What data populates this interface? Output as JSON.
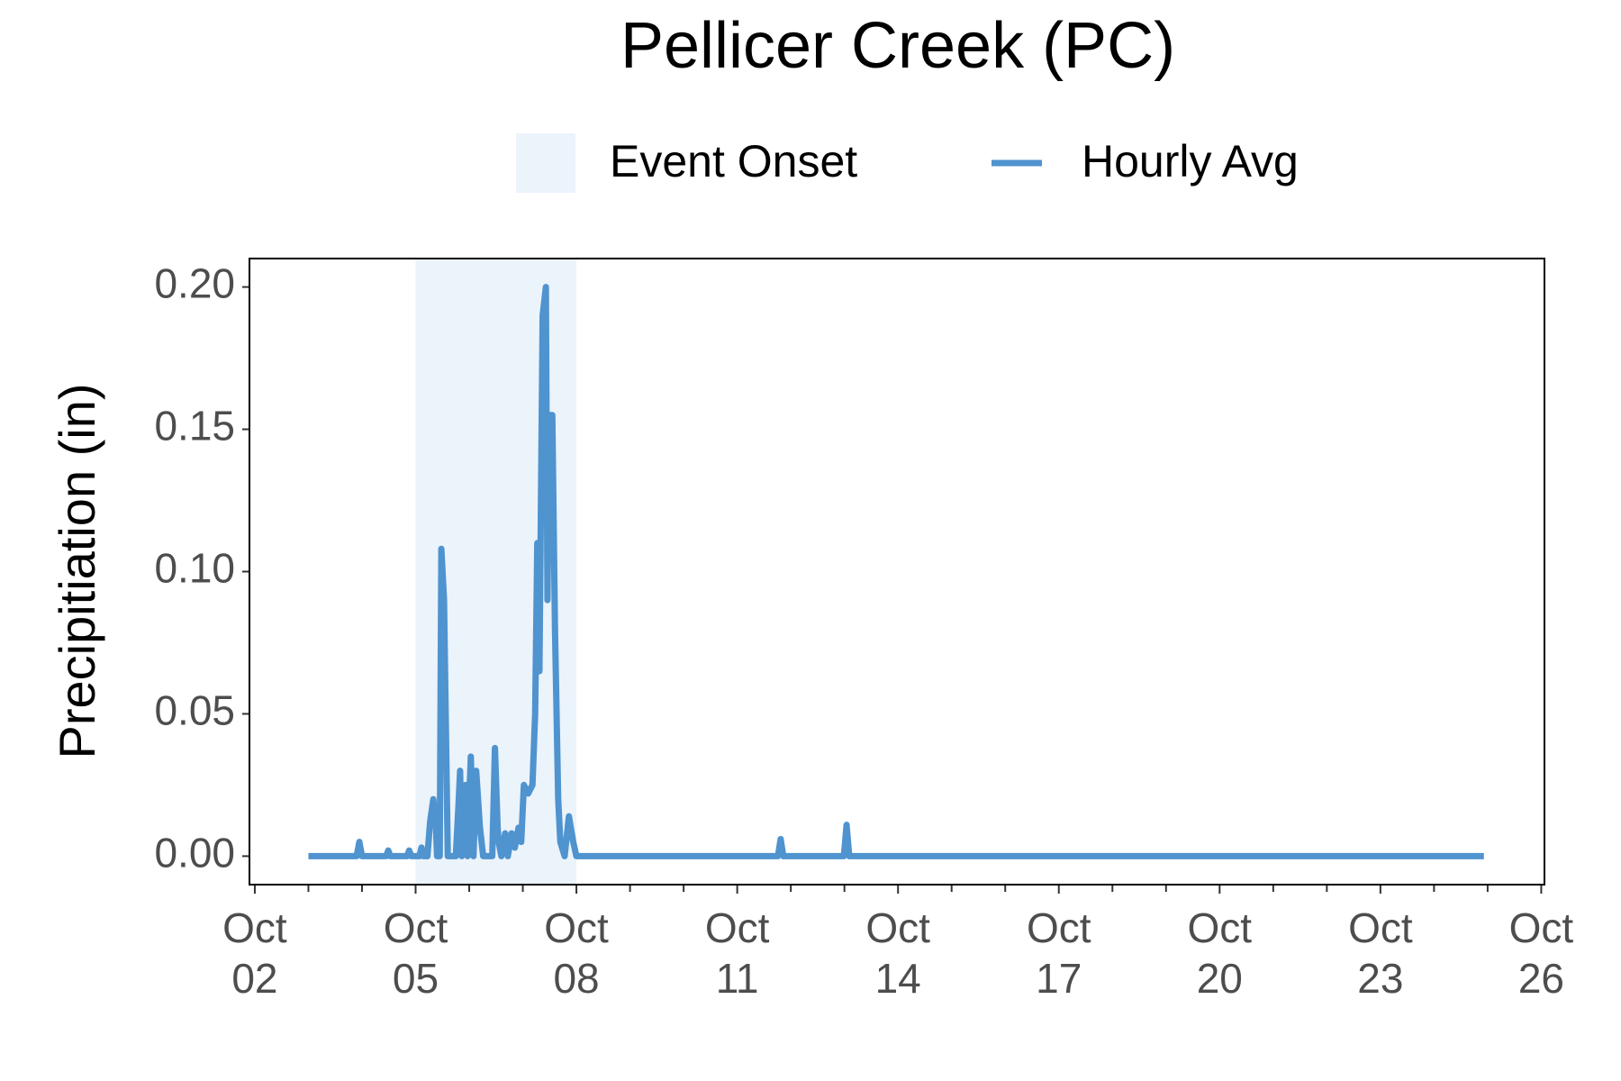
{
  "chart_data": {
    "type": "line",
    "title": "Pellicer Creek (PC)",
    "y_label": "Precipitiation (in)",
    "legend": "top",
    "shaded": {
      "name": "Event Onset",
      "color": "#ebf3fb",
      "x": [
        5,
        8
      ]
    },
    "series": [
      {
        "name": "Hourly Avg",
        "color": "#4f93cf",
        "x": [
          3.0,
          3.9,
          3.95,
          4.0,
          4.45,
          4.49,
          4.53,
          4.84,
          4.88,
          4.92,
          5.07,
          5.11,
          5.15,
          5.22,
          5.27,
          5.33,
          5.38,
          5.4,
          5.45,
          5.48,
          5.53,
          5.6,
          5.75,
          5.8,
          5.83,
          5.86,
          5.9,
          5.93,
          5.97,
          6.0,
          6.03,
          6.08,
          6.13,
          6.2,
          6.26,
          6.43,
          6.48,
          6.53,
          6.55,
          6.6,
          6.67,
          6.72,
          6.79,
          6.85,
          6.92,
          6.97,
          7.02,
          7.1,
          7.18,
          7.23,
          7.27,
          7.31,
          7.37,
          7.43,
          7.46,
          7.49,
          7.55,
          7.6,
          7.66,
          7.7,
          7.78,
          7.86,
          7.94,
          8.0,
          11.76,
          11.81,
          11.86,
          12.99,
          13.04,
          13.09,
          24.93
        ],
        "values": [
          0,
          0,
          0.005,
          0,
          0,
          0.002,
          0,
          0,
          0.002,
          0,
          0,
          0.003,
          0,
          0,
          0.012,
          0.02,
          0.01,
          0,
          0,
          0.108,
          0.09,
          0,
          0,
          0.018,
          0.03,
          0,
          0.012,
          0.025,
          0,
          0.02,
          0.035,
          0,
          0.03,
          0.01,
          0,
          0,
          0.038,
          0.01,
          0.005,
          0,
          0.008,
          0,
          0.008,
          0.003,
          0.01,
          0.005,
          0.025,
          0.022,
          0.025,
          0.05,
          0.11,
          0.065,
          0.19,
          0.2,
          0.09,
          0.155,
          0.155,
          0.08,
          0.02,
          0.005,
          0,
          0.014,
          0.005,
          0,
          0,
          0.006,
          0,
          0,
          0.011,
          0,
          0
        ]
      }
    ],
    "xlim": [
      1.9,
      26.06
    ],
    "xticks": [
      {
        "value": 2,
        "label": "Oct\n02"
      },
      {
        "value": 5,
        "label": "Oct\n05"
      },
      {
        "value": 8,
        "label": "Oct\n08"
      },
      {
        "value": 11,
        "label": "Oct\n11"
      },
      {
        "value": 14,
        "label": "Oct\n14"
      },
      {
        "value": 17,
        "label": "Oct\n17"
      },
      {
        "value": 20,
        "label": "Oct\n20"
      },
      {
        "value": 23,
        "label": "Oct\n23"
      },
      {
        "value": 26,
        "label": "Oct\n26"
      }
    ],
    "xminor_ticks": [
      3,
      4,
      6,
      7,
      9,
      10,
      12,
      13,
      15,
      16,
      18,
      19,
      21,
      22,
      24,
      25
    ],
    "ylim": [
      -0.01,
      0.21
    ],
    "yticks": [
      {
        "value": 0,
        "label": "0.00"
      },
      {
        "value": 0.05,
        "label": "0.05"
      },
      {
        "value": 0.1,
        "label": "0.10"
      },
      {
        "value": 0.15,
        "label": "0.15"
      },
      {
        "value": 0.2,
        "label": "0.20"
      }
    ]
  }
}
